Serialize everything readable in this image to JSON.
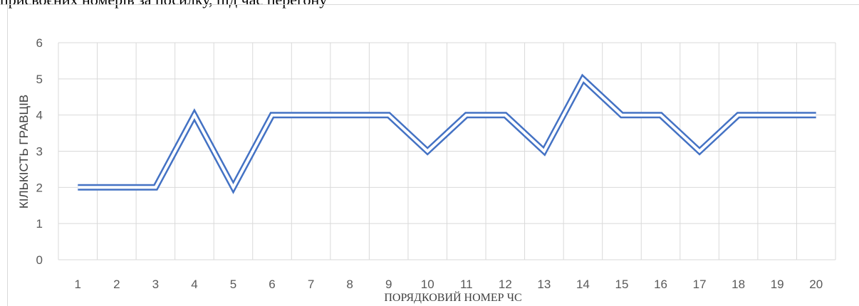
{
  "page": {
    "top_text": "присвоєних номерів за посилку, під час перегону"
  },
  "chart_data": {
    "type": "line",
    "categories": [
      "1",
      "2",
      "3",
      "4",
      "5",
      "6",
      "7",
      "8",
      "9",
      "10",
      "11",
      "12",
      "13",
      "14",
      "15",
      "16",
      "17",
      "18",
      "19",
      "20"
    ],
    "series": [
      {
        "values": [
          2,
          2,
          2,
          4,
          2,
          4,
          4,
          4,
          4,
          3,
          4,
          4,
          3,
          5,
          4,
          4,
          3,
          4,
          4,
          4
        ]
      }
    ],
    "yticks": [
      "0",
      "1",
      "2",
      "3",
      "4",
      "5",
      "6"
    ],
    "ylim": [
      0,
      6
    ],
    "xlabel": "ПОРЯДКОВИЙ НОМЕР ЧС",
    "ylabel": "КІЛЬКІСТЬ ГРАВЦІВ",
    "grid": true,
    "line_color": "#4472c4",
    "grid_color": "#d9d9d9"
  }
}
